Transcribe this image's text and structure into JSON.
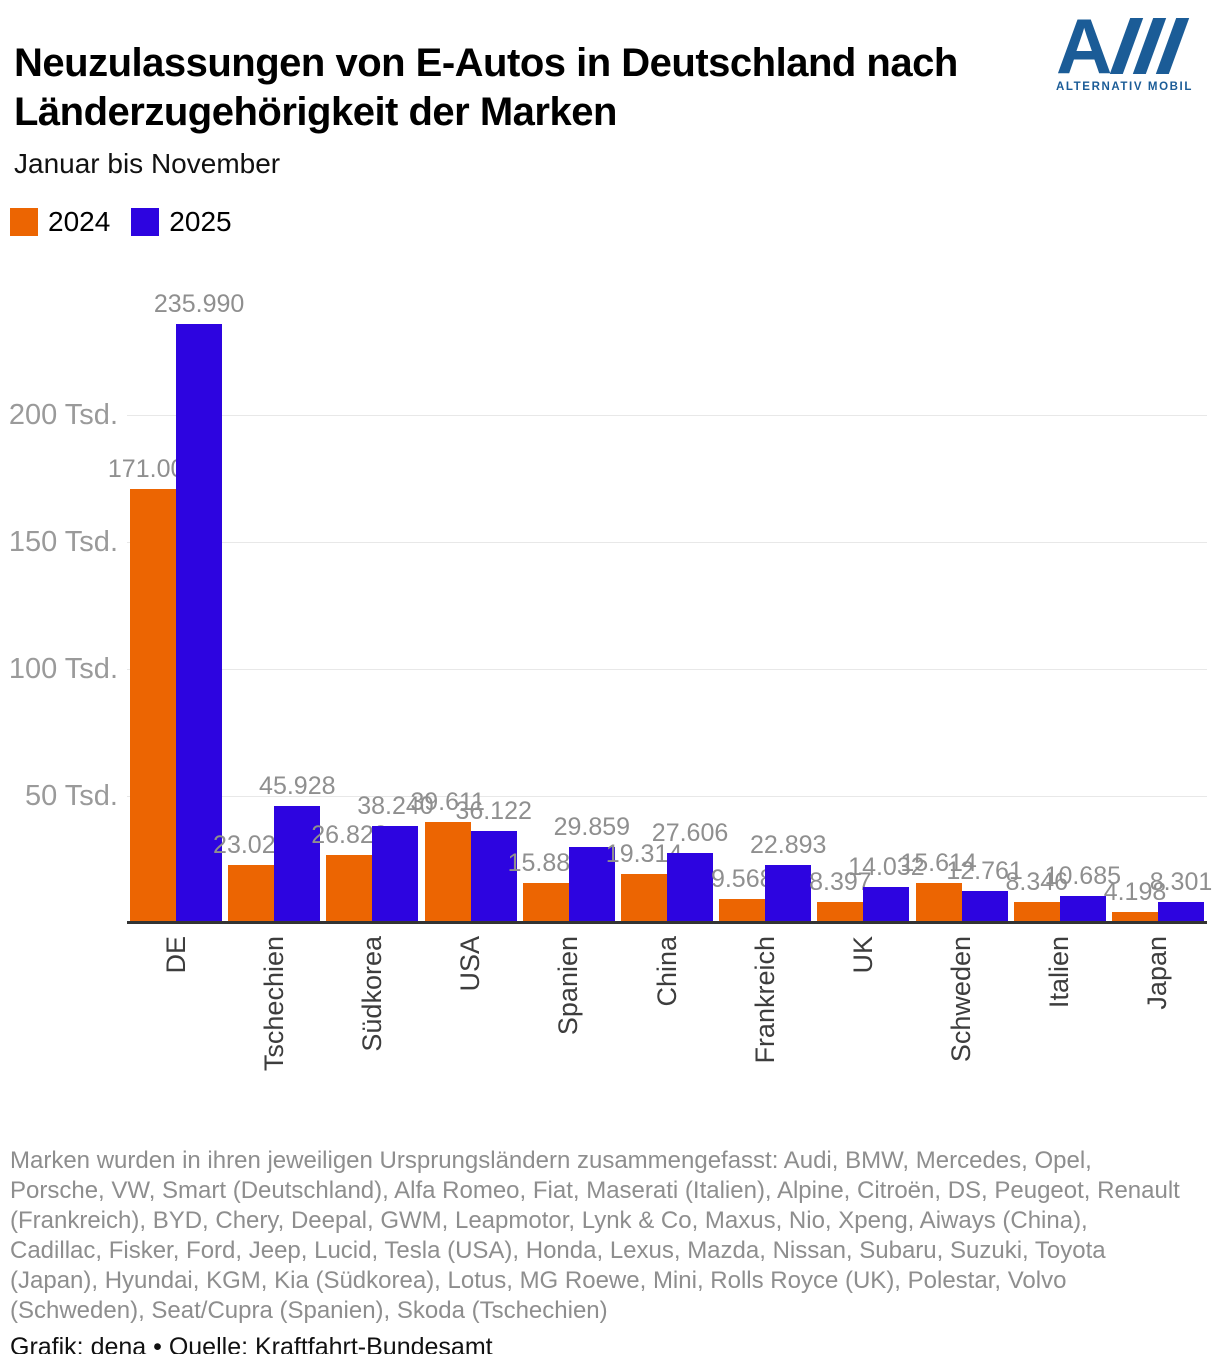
{
  "header": {
    "title": "Neuzulassungen von E-Autos in Deutschland nach Länderzugehörigkeit der Marken",
    "subtitle": "Januar bis November"
  },
  "logo": {
    "letter": "A",
    "text": "ALTERNATIV MOBIL",
    "color": "#1b5c97"
  },
  "legend": {
    "items": [
      {
        "label": "2024",
        "color": "#ec6502"
      },
      {
        "label": "2025",
        "color": "#2d04e0"
      }
    ]
  },
  "chart_data": {
    "type": "bar",
    "title": "Neuzulassungen von E-Autos in Deutschland nach Länderzugehörigkeit der Marken",
    "subtitle": "Januar bis November",
    "legend_position": "top-left",
    "grid": true,
    "ylim": [
      0,
      257000
    ],
    "categories": [
      "DE",
      "Tschechien",
      "Südkorea",
      "USA",
      "Spanien",
      "China",
      "Frankreich",
      "UK",
      "Schweden",
      "Italien",
      "Japan"
    ],
    "series": [
      {
        "name": "2024",
        "color": "#ec6502",
        "values": [
          171006,
          23026,
          26823,
          39611,
          15889,
          19314,
          9568,
          8397,
          15614,
          8346,
          4198
        ],
        "display": [
          "171.006",
          "23.026",
          "26.823",
          "39.611",
          "15.889",
          "19.314",
          "9.568",
          "8.397",
          "15.614",
          "8.346",
          "4.198"
        ]
      },
      {
        "name": "2025",
        "color": "#2d04e0",
        "values": [
          235990,
          45928,
          38240,
          36122,
          29859,
          27606,
          22893,
          14032,
          12761,
          10685,
          8301
        ],
        "display": [
          "235.990",
          "45.928",
          "38.240",
          "36.122",
          "29.859",
          "27.606",
          "22.893",
          "14.032",
          "12.761",
          "10.685",
          "8.301"
        ]
      }
    ],
    "y_axis": {
      "ticks": [
        {
          "value": 50000,
          "label": "50 Tsd."
        },
        {
          "value": 100000,
          "label": "100 Tsd."
        },
        {
          "value": 150000,
          "label": "150 Tsd."
        },
        {
          "value": 200000,
          "label": "200 Tsd."
        }
      ]
    }
  },
  "footer": {
    "note": "Marken wurden in ihren jeweiligen Ursprungsländern zusammengefasst: Audi, BMW, Mercedes, Opel, Porsche, VW, Smart (Deutschland), Alfa Romeo, Fiat, Maserati (Italien), Alpine, Citroën, DS, Peugeot, Renault (Frankreich), BYD, Chery, Deepal, GWM, Leapmotor, Lynk & Co, Maxus, Nio, Xpeng, Aiways (China), Cadillac, Fisker, Ford, Jeep, Lucid, Tesla (USA), Honda, Lexus, Mazda, Nissan, Subaru, Suzuki, Toyota (Japan), Hyundai, KGM, Kia (Südkorea), Lotus, MG Roewe, Mini, Rolls Royce (UK), Polestar, Volvo (Schweden), Seat/Cupra (Spanien), Skoda (Tschechien)",
    "credit": "Grafik: dena • Quelle: Kraftfahrt-Bundesamt"
  },
  "colors": {
    "axis_line": "#333333",
    "gridline": "#e8e8e8",
    "y_tick_label": "#9a9a9a",
    "value_label": "#8f8f8f",
    "x_label": "#3d3d3d",
    "note_text": "#8e8e8e"
  }
}
